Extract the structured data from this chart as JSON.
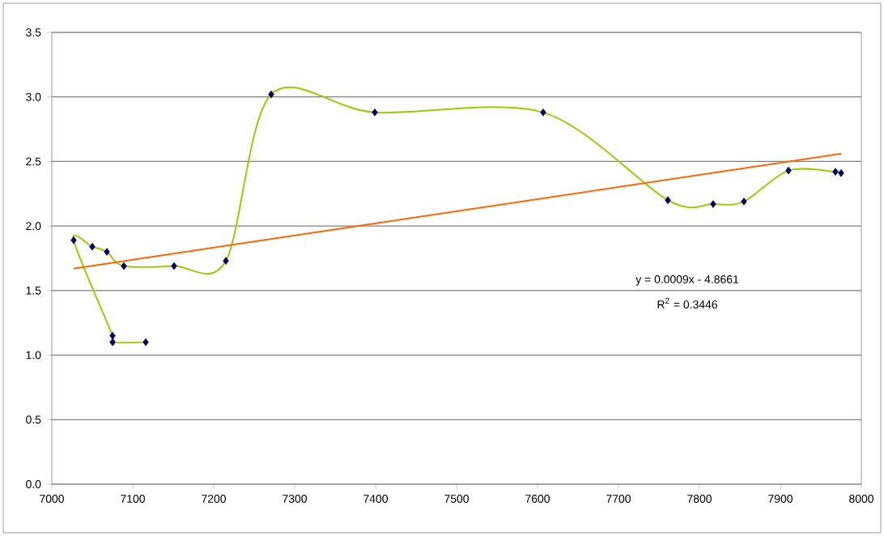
{
  "chart_data": {
    "type": "line",
    "xlim": [
      7000,
      8000
    ],
    "xticks": [
      7000,
      7100,
      7200,
      7300,
      7400,
      7500,
      7600,
      7700,
      7800,
      7900,
      8000
    ],
    "ylim": [
      0,
      3.5
    ],
    "yticks": [
      {
        "value": 0,
        "label": "0.0"
      },
      {
        "value": 0.5,
        "label": "0.5"
      },
      {
        "value": 1,
        "label": "1.0"
      },
      {
        "value": 1.5,
        "label": "1.5"
      },
      {
        "value": 2,
        "label": "2.0"
      },
      {
        "value": 2.5,
        "label": "2.5"
      },
      {
        "value": 3,
        "label": "3.0"
      },
      {
        "value": 3.5,
        "label": "3.5"
      }
    ],
    "grid": "y",
    "line_style": "solid",
    "series": [
      {
        "color": "#99cc00",
        "marker": "diamond",
        "x": [
          7116,
          7075,
          7075,
          7027,
          7050,
          7068,
          7089,
          7151,
          7215,
          7271,
          7399,
          7607,
          7761,
          7817,
          7855,
          7910,
          7968,
          7975
        ],
        "values": [
          1.1,
          1.1,
          1.15,
          1.89,
          1.84,
          1.8,
          1.69,
          1.69,
          1.73,
          3.02,
          2.88,
          2.88,
          2.2,
          2.17,
          2.19,
          2.43,
          2.42,
          2.41
        ]
      },
      {
        "color": "#ff6600",
        "marker": "none",
        "x": [
          7027,
          7975
        ],
        "values": [
          1.67,
          2.56
        ]
      }
    ],
    "annotations": [
      "y = 0.0009x - 4.8661",
      "R$^{2}$ = 0.3446"
    ]
  }
}
